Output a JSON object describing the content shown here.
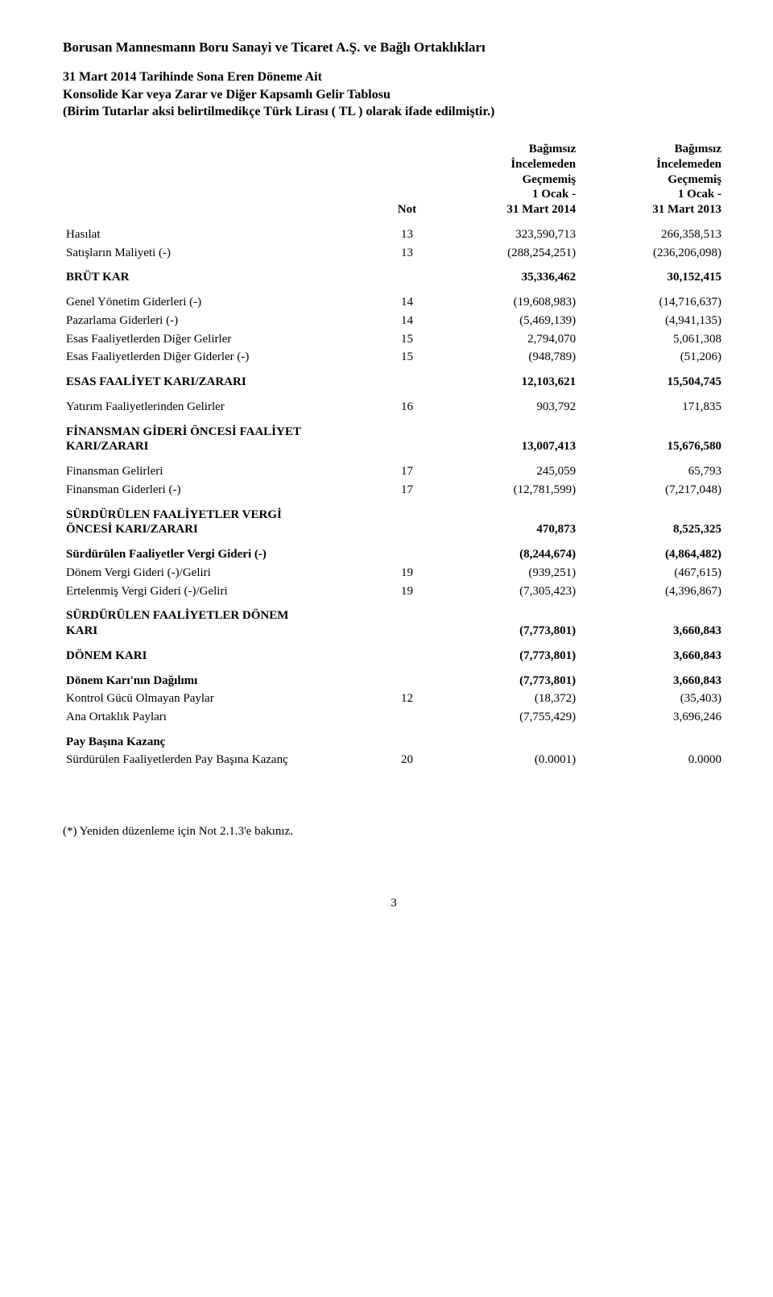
{
  "company_title": "Borusan Mannesmann Boru Sanayi ve Ticaret A.Ş. ve Bağlı Ortaklıkları",
  "heading": {
    "line1": "31 Mart 2014 Tarihinde Sona Eren Döneme Ait",
    "line2": "Konsolide Kar veya Zarar ve Diğer Kapsamlı Gelir Tablosu",
    "line3": "(Birim Tutarlar aksi belirtilmedikçe Türk Lirası ( TL ) olarak ifade edilmiştir.)"
  },
  "columns": {
    "note": "Not",
    "period1": {
      "l1": "Bağımsız",
      "l2": "İncelemeden",
      "l3": "Geçmemiş",
      "l4": "1 Ocak  -",
      "l5": "31 Mart 2014"
    },
    "period2": {
      "l1": "Bağımsız",
      "l2": "İncelemeden",
      "l3": "Geçmemiş",
      "l4": "1 Ocak  -",
      "l5": "31 Mart 2013"
    }
  },
  "rows": {
    "hasilat": {
      "label": "Hasılat",
      "note": "13",
      "v1": "323,590,713",
      "v2": "266,358,513"
    },
    "satislarin_maliyeti": {
      "label": "Satışların Maliyeti (-)",
      "note": "13",
      "v1": "(288,254,251)",
      "v2": "(236,206,098)"
    },
    "brut_kar": {
      "label": "BRÜT KAR",
      "note": "",
      "v1": "35,336,462",
      "v2": "30,152,415"
    },
    "genel_yonetim": {
      "label": "Genel Yönetim Giderleri (-)",
      "note": "14",
      "v1": "(19,608,983)",
      "v2": "(14,716,637)"
    },
    "pazarlama": {
      "label": "Pazarlama Giderleri (-)",
      "note": "14",
      "v1": "(5,469,139)",
      "v2": "(4,941,135)"
    },
    "esas_diger_gelir": {
      "label": "Esas Faaliyetlerden Diğer Gelirler",
      "note": "15",
      "v1": "2,794,070",
      "v2": "5,061,308"
    },
    "esas_diger_gider": {
      "label": "Esas Faaliyetlerden Diğer Giderler (-)",
      "note": "15",
      "v1": "(948,789)",
      "v2": "(51,206)"
    },
    "esas_faal_kz": {
      "label": "ESAS FAALİYET KARI/ZARARI",
      "note": "",
      "v1": "12,103,621",
      "v2": "15,504,745"
    },
    "yatirim_gelir": {
      "label": "Yatırım Faaliyetlerinden Gelirler",
      "note": "16",
      "v1": "903,792",
      "v2": "171,835"
    },
    "fin_gideri_oncesi": {
      "label_l1": "FİNANSMAN GİDERİ ÖNCESİ FAALİYET",
      "label_l2": "KARI/ZARARI",
      "note": "",
      "v1": "13,007,413",
      "v2": "15,676,580"
    },
    "fin_gelirleri": {
      "label": "Finansman Gelirleri",
      "note": "17",
      "v1": "245,059",
      "v2": "65,793"
    },
    "fin_giderleri": {
      "label": "Finansman Giderleri (-)",
      "note": "17",
      "v1": "(12,781,599)",
      "v2": "(7,217,048)"
    },
    "surd_vergi_oncesi": {
      "label_l1": "SÜRDÜRÜLEN FAALİYETLER VERGİ",
      "label_l2": "ÖNCESİ KARI/ZARARI",
      "note": "",
      "v1": "470,873",
      "v2": "8,525,325"
    },
    "surd_vergi_gideri": {
      "label": "Sürdürülen Faaliyetler Vergi Gideri (-)",
      "note": "",
      "v1": "(8,244,674)",
      "v2": "(4,864,482)"
    },
    "donem_vergi": {
      "label": "Dönem Vergi Gideri (-)/Geliri",
      "note": "19",
      "v1": "(939,251)",
      "v2": "(467,615)"
    },
    "ertelenmis_vergi": {
      "label": "Ertelenmiş Vergi Gideri (-)/Geliri",
      "note": "19",
      "v1": "(7,305,423)",
      "v2": "(4,396,867)"
    },
    "surd_donem_kari": {
      "label_l1": "SÜRDÜRÜLEN FAALİYETLER DÖNEM",
      "label_l2": "KARI",
      "note": "",
      "v1": "(7,773,801)",
      "v2": "3,660,843"
    },
    "donem_kari": {
      "label": "DÖNEM KARI",
      "note": "",
      "v1": "(7,773,801)",
      "v2": "3,660,843"
    },
    "dagilim": {
      "label": "Dönem Karı'nın Dağılımı",
      "note": "",
      "v1": "(7,773,801)",
      "v2": "3,660,843"
    },
    "kontrol_gucu": {
      "label": "Kontrol Gücü Olmayan Paylar",
      "note": "12",
      "v1": "(18,372)",
      "v2": "(35,403)"
    },
    "ana_ortaklik": {
      "label": "Ana Ortaklık Payları",
      "note": "",
      "v1": "(7,755,429)",
      "v2": "3,696,246"
    },
    "pbk_header": {
      "label": "Pay Başına Kazanç"
    },
    "pbk": {
      "label": "Sürdürülen Faaliyetlerden Pay Başına Kazanç",
      "note": "20",
      "v1": "(0.0001)",
      "v2": "0.0000"
    }
  },
  "footnote": "(*) Yeniden düzenleme için Not 2.1.3'e bakınız.",
  "page_number": "3",
  "style": {
    "background": "#ffffff",
    "text_color": "#000000",
    "font_family": "Times New Roman",
    "base_font_size_pt": 11
  }
}
